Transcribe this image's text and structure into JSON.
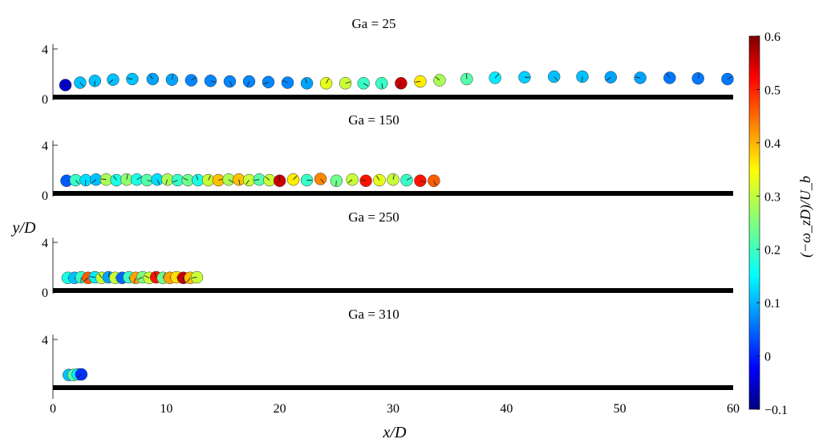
{
  "chart_data": {
    "type": "scatter",
    "xlabel": "x/D",
    "ylabel": "y/D",
    "xlim": [
      0,
      60
    ],
    "xticks": [
      "0",
      "10",
      "20",
      "30",
      "40",
      "50",
      "60"
    ],
    "yticks": [
      "0",
      "4"
    ],
    "colorbar": {
      "label": "(−ω_zD)/U_b",
      "range": [
        -0.1,
        0.6
      ],
      "colormap": "jet",
      "ticks": [
        "−0.1",
        "0",
        "0.1",
        "0.2",
        "0.3",
        "0.4",
        "0.5",
        "0.6"
      ]
    },
    "panels": [
      {
        "title": "Ga = 25",
        "points": [
          {
            "x": 1.1,
            "y": 0.6,
            "c": -0.05
          },
          {
            "x": 2.4,
            "y": 1.0,
            "c": 0.12
          },
          {
            "x": 3.7,
            "y": 1.3,
            "c": 0.12
          },
          {
            "x": 5.3,
            "y": 1.5,
            "c": 0.12
          },
          {
            "x": 7.0,
            "y": 1.6,
            "c": 0.12
          },
          {
            "x": 8.8,
            "y": 1.6,
            "c": 0.1
          },
          {
            "x": 10.5,
            "y": 1.5,
            "c": 0.1
          },
          {
            "x": 12.2,
            "y": 1.4,
            "c": 0.08
          },
          {
            "x": 13.9,
            "y": 1.3,
            "c": 0.08
          },
          {
            "x": 15.6,
            "y": 1.2,
            "c": 0.08
          },
          {
            "x": 17.3,
            "y": 1.2,
            "c": 0.08
          },
          {
            "x": 19.0,
            "y": 1.1,
            "c": 0.08
          },
          {
            "x": 20.7,
            "y": 1.0,
            "c": 0.08
          },
          {
            "x": 22.4,
            "y": 0.9,
            "c": 0.1
          },
          {
            "x": 24.1,
            "y": 0.9,
            "c": 0.32
          },
          {
            "x": 25.8,
            "y": 0.9,
            "c": 0.3
          },
          {
            "x": 27.4,
            "y": 0.9,
            "c": 0.2
          },
          {
            "x": 29.0,
            "y": 0.9,
            "c": 0.2
          },
          {
            "x": 30.7,
            "y": 0.9,
            "c": 0.55
          },
          {
            "x": 32.4,
            "y": 1.2,
            "c": 0.35
          },
          {
            "x": 34.1,
            "y": 1.4,
            "c": 0.28
          },
          {
            "x": 36.5,
            "y": 1.6,
            "c": 0.22
          },
          {
            "x": 39.0,
            "y": 1.8,
            "c": 0.15
          },
          {
            "x": 41.6,
            "y": 1.9,
            "c": 0.13
          },
          {
            "x": 44.2,
            "y": 2.0,
            "c": 0.12
          },
          {
            "x": 46.7,
            "y": 2.0,
            "c": 0.12
          },
          {
            "x": 49.2,
            "y": 1.9,
            "c": 0.1
          },
          {
            "x": 51.8,
            "y": 1.8,
            "c": 0.1
          },
          {
            "x": 54.4,
            "y": 1.8,
            "c": 0.07
          },
          {
            "x": 56.9,
            "y": 1.7,
            "c": 0.07
          },
          {
            "x": 59.5,
            "y": 1.6,
            "c": 0.07
          }
        ]
      },
      {
        "title": "Ga = 150",
        "points": [
          {
            "x": 1.2,
            "y": 0.7,
            "c": 0.05
          },
          {
            "x": 2.0,
            "y": 0.8,
            "c": 0.2
          },
          {
            "x": 2.9,
            "y": 0.8,
            "c": 0.14
          },
          {
            "x": 3.8,
            "y": 0.9,
            "c": 0.12
          },
          {
            "x": 4.7,
            "y": 0.9,
            "c": 0.28
          },
          {
            "x": 5.6,
            "y": 0.8,
            "c": 0.18
          },
          {
            "x": 6.5,
            "y": 0.9,
            "c": 0.26
          },
          {
            "x": 7.4,
            "y": 0.9,
            "c": 0.18
          },
          {
            "x": 8.3,
            "y": 0.8,
            "c": 0.22
          },
          {
            "x": 9.2,
            "y": 0.9,
            "c": 0.14
          },
          {
            "x": 10.1,
            "y": 0.9,
            "c": 0.28
          },
          {
            "x": 11.0,
            "y": 0.8,
            "c": 0.2
          },
          {
            "x": 11.9,
            "y": 0.8,
            "c": 0.24
          },
          {
            "x": 12.8,
            "y": 0.8,
            "c": 0.18
          },
          {
            "x": 13.7,
            "y": 0.8,
            "c": 0.3
          },
          {
            "x": 14.6,
            "y": 0.8,
            "c": 0.38
          },
          {
            "x": 15.5,
            "y": 0.9,
            "c": 0.28
          },
          {
            "x": 16.4,
            "y": 0.9,
            "c": 0.38
          },
          {
            "x": 17.3,
            "y": 0.8,
            "c": 0.3
          },
          {
            "x": 18.2,
            "y": 0.9,
            "c": 0.22
          },
          {
            "x": 19.1,
            "y": 0.8,
            "c": 0.3
          },
          {
            "x": 20.0,
            "y": 0.7,
            "c": 0.55
          },
          {
            "x": 21.2,
            "y": 0.9,
            "c": 0.35
          },
          {
            "x": 22.4,
            "y": 0.8,
            "c": 0.2
          },
          {
            "x": 23.6,
            "y": 1.0,
            "c": 0.42
          },
          {
            "x": 25.0,
            "y": 0.7,
            "c": 0.24
          },
          {
            "x": 26.4,
            "y": 0.9,
            "c": 0.3
          },
          {
            "x": 27.6,
            "y": 0.7,
            "c": 0.5
          },
          {
            "x": 28.8,
            "y": 0.8,
            "c": 0.32
          },
          {
            "x": 30.0,
            "y": 0.9,
            "c": 0.3
          },
          {
            "x": 31.2,
            "y": 0.8,
            "c": 0.2
          },
          {
            "x": 32.4,
            "y": 0.7,
            "c": 0.5
          },
          {
            "x": 33.6,
            "y": 0.7,
            "c": 0.45
          }
        ]
      },
      {
        "title": "Ga = 250",
        "points": [
          {
            "x": 1.3,
            "y": 0.7,
            "c": 0.18
          },
          {
            "x": 1.9,
            "y": 0.7,
            "c": 0.12
          },
          {
            "x": 2.5,
            "y": 0.8,
            "c": 0.2
          },
          {
            "x": 3.1,
            "y": 0.7,
            "c": 0.45
          },
          {
            "x": 3.7,
            "y": 0.8,
            "c": 0.15
          },
          {
            "x": 4.3,
            "y": 0.7,
            "c": 0.3
          },
          {
            "x": 4.9,
            "y": 0.8,
            "c": 0.1
          },
          {
            "x": 5.5,
            "y": 0.7,
            "c": 0.3
          },
          {
            "x": 6.1,
            "y": 0.7,
            "c": 0.06
          },
          {
            "x": 6.7,
            "y": 0.8,
            "c": 0.2
          },
          {
            "x": 7.3,
            "y": 0.7,
            "c": 0.4
          },
          {
            "x": 7.9,
            "y": 0.8,
            "c": 0.25
          },
          {
            "x": 8.5,
            "y": 0.7,
            "c": 0.3
          },
          {
            "x": 9.1,
            "y": 0.8,
            "c": 0.5
          },
          {
            "x": 9.7,
            "y": 0.7,
            "c": 0.24
          },
          {
            "x": 10.3,
            "y": 0.7,
            "c": 0.4
          },
          {
            "x": 10.9,
            "y": 0.8,
            "c": 0.36
          },
          {
            "x": 11.5,
            "y": 0.7,
            "c": 0.55
          },
          {
            "x": 12.1,
            "y": 0.7,
            "c": 0.38
          },
          {
            "x": 12.7,
            "y": 0.8,
            "c": 0.3
          }
        ]
      },
      {
        "title": "Ga = 310",
        "points": [
          {
            "x": 1.4,
            "y": 0.7,
            "c": 0.12
          },
          {
            "x": 1.8,
            "y": 0.7,
            "c": 0.22
          },
          {
            "x": 2.2,
            "y": 0.8,
            "c": 0.15
          },
          {
            "x": 2.5,
            "y": 0.8,
            "c": 0.02
          }
        ]
      }
    ]
  }
}
